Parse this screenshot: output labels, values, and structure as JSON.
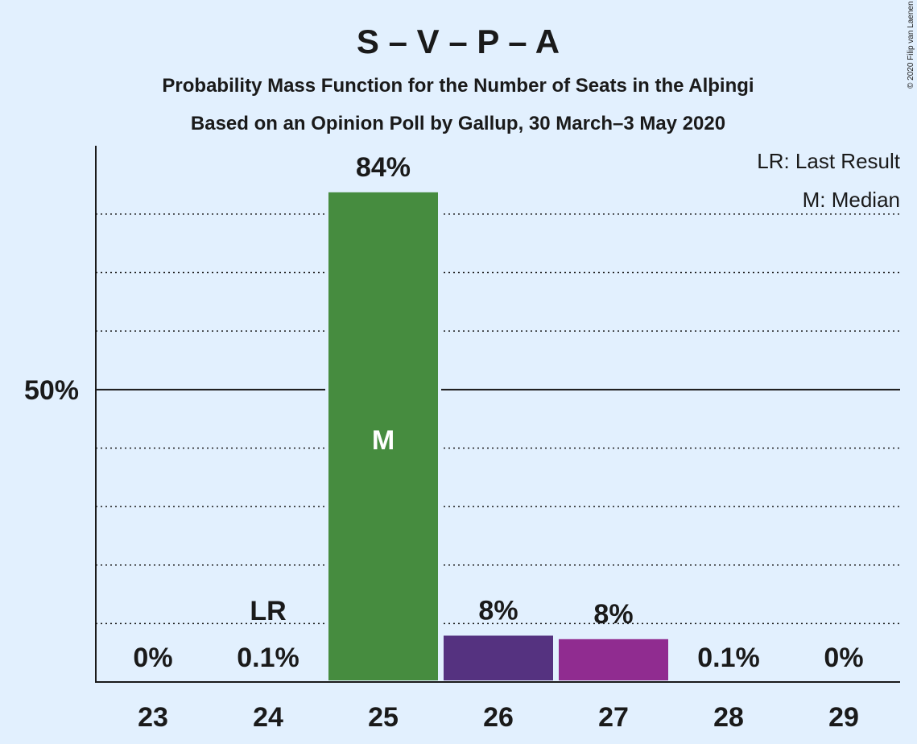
{
  "chart_data": {
    "type": "bar",
    "title": "S – V – P – A",
    "subtitle": "Probability Mass Function for the Number of Seats in the Alþingi",
    "subtitle2": "Based on an Opinion Poll by Gallup, 30 March–3 May 2020",
    "copyright": "© 2020 Filip van Laenen",
    "categories": [
      "23",
      "24",
      "25",
      "26",
      "27",
      "28",
      "29"
    ],
    "values": [
      0,
      0.1,
      84,
      8.2,
      7.6,
      0.1,
      0
    ],
    "value_labels": [
      "0%",
      "0.1%",
      "84%",
      "8%",
      "8%",
      "0.1%",
      "0%"
    ],
    "bar_colors": [
      null,
      null,
      "#468c3f",
      "#553280",
      "#902c90",
      null,
      null
    ],
    "ylim": [
      0,
      91
    ],
    "y_tick_label": "50%",
    "y_tick_value": 50,
    "gridlines_dotted": [
      10,
      20,
      30,
      40,
      60,
      70,
      80
    ],
    "last_result": {
      "category": "24",
      "label": "LR"
    },
    "median": {
      "category": "25",
      "label": "M"
    },
    "legend": {
      "position": "top-right",
      "items": [
        "LR: Last Result",
        "M: Median"
      ]
    }
  }
}
